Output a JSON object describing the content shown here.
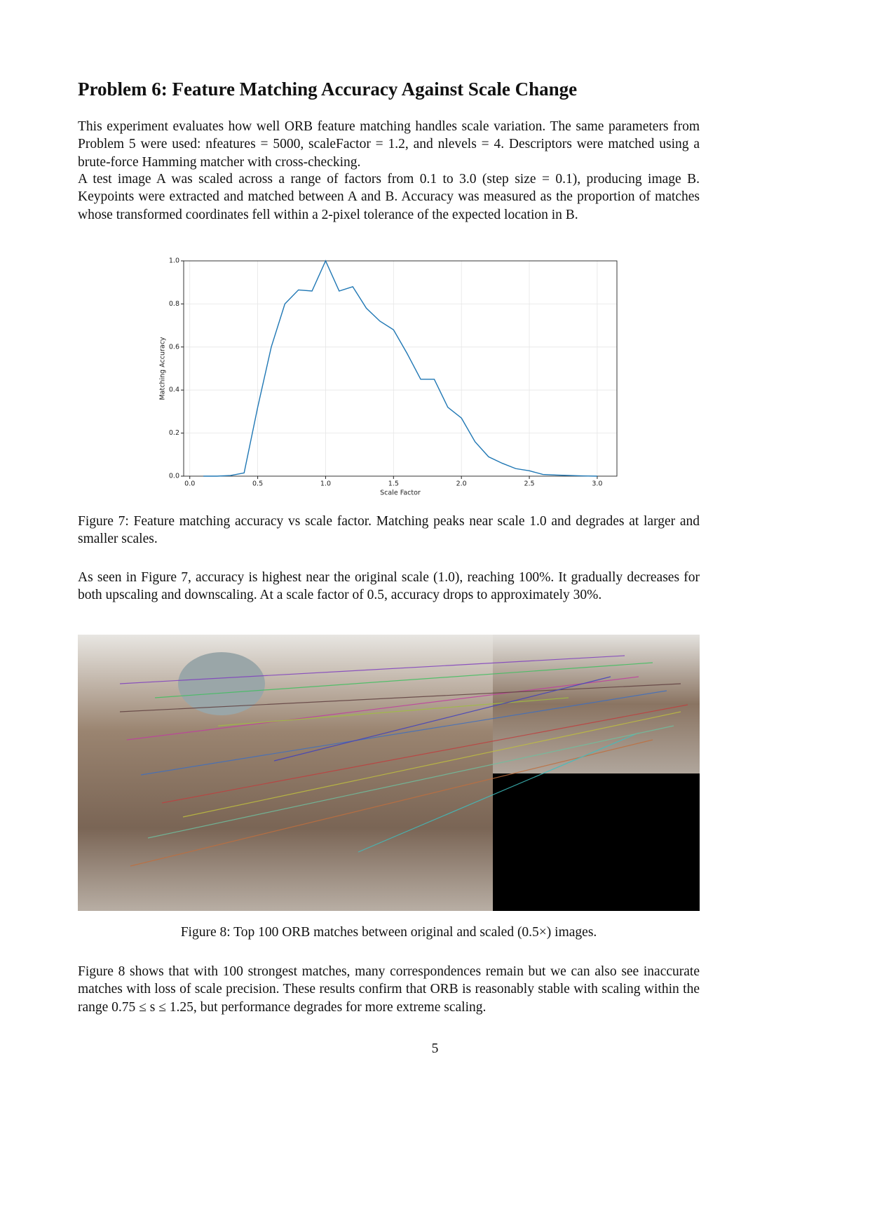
{
  "heading": "Problem 6: Feature Matching Accuracy Against Scale Change",
  "paragraphs": [
    "This experiment evaluates how well ORB feature matching handles scale variation. The same parameters from Problem 5 were used: nfeatures = 5000, scaleFactor = 1.2, and nlevels = 4. Descriptors were matched using a brute-force Hamming matcher with cross-checking.",
    "A test image A was scaled across a range of factors from 0.1 to 3.0 (step size = 0.1), producing image B. Keypoints were extracted and matched between A and B. Accuracy was measured as the proportion of matches whose transformed coordinates fell within a 2-pixel tolerance of the expected location in B.",
    "As seen in Figure 7, accuracy is highest near the original scale (1.0), reaching 100%. It gradually decreases for both upscaling and downscaling. At a scale factor of 0.5, accuracy drops to approximately 30%.",
    "Figure 8 shows that with 100 strongest matches, many correspondences remain but we can also see inaccurate matches with loss of scale precision. These results confirm that ORB is reasonably stable with scaling within the range 0.75 ≤ s ≤ 1.25, but performance degrades for more extreme scaling."
  ],
  "chart_data": {
    "type": "line",
    "x_label": "Scale Factor",
    "y_label": "Matching Accuracy",
    "x": [
      0.1,
      0.2,
      0.3,
      0.4,
      0.5,
      0.6,
      0.7,
      0.8,
      0.9,
      1.0,
      1.1,
      1.2,
      1.3,
      1.4,
      1.5,
      1.6,
      1.7,
      1.8,
      1.9,
      2.0,
      2.1,
      2.2,
      2.3,
      2.4,
      2.5,
      2.6,
      2.7,
      2.8,
      2.9,
      3.0
    ],
    "values": [
      0.0,
      0.0,
      0.003,
      0.015,
      0.32,
      0.6,
      0.8,
      0.865,
      0.86,
      1.0,
      0.86,
      0.88,
      0.78,
      0.72,
      0.68,
      0.57,
      0.45,
      0.45,
      0.32,
      0.27,
      0.16,
      0.09,
      0.06,
      0.035,
      0.025,
      0.008,
      0.005,
      0.003,
      0.001,
      0.0
    ],
    "color": "#1f77b4",
    "xlim": [
      -0.045,
      3.145
    ],
    "ylim": [
      0,
      1.0
    ],
    "xticks": [
      {
        "value": 0,
        "label": "0.0"
      },
      0.5,
      {
        "value": 1,
        "label": "1.0"
      },
      1.5,
      {
        "value": 2,
        "label": "2.0"
      },
      2.5,
      {
        "value": 3,
        "label": "3.0"
      }
    ],
    "yticks": [
      {
        "value": 0,
        "label": "0.0"
      },
      0.2,
      0.4,
      0.6,
      0.8,
      {
        "value": 1,
        "label": "1.0"
      }
    ],
    "grid": true
  },
  "captions": [
    "Figure 7: Feature matching accuracy vs scale factor. Matching peaks near scale 1.0 and degrades at larger and smaller scales.",
    "Figure 8: Top 100 ORB matches between original and scaled (0.5×) images."
  ],
  "page_number": 5
}
